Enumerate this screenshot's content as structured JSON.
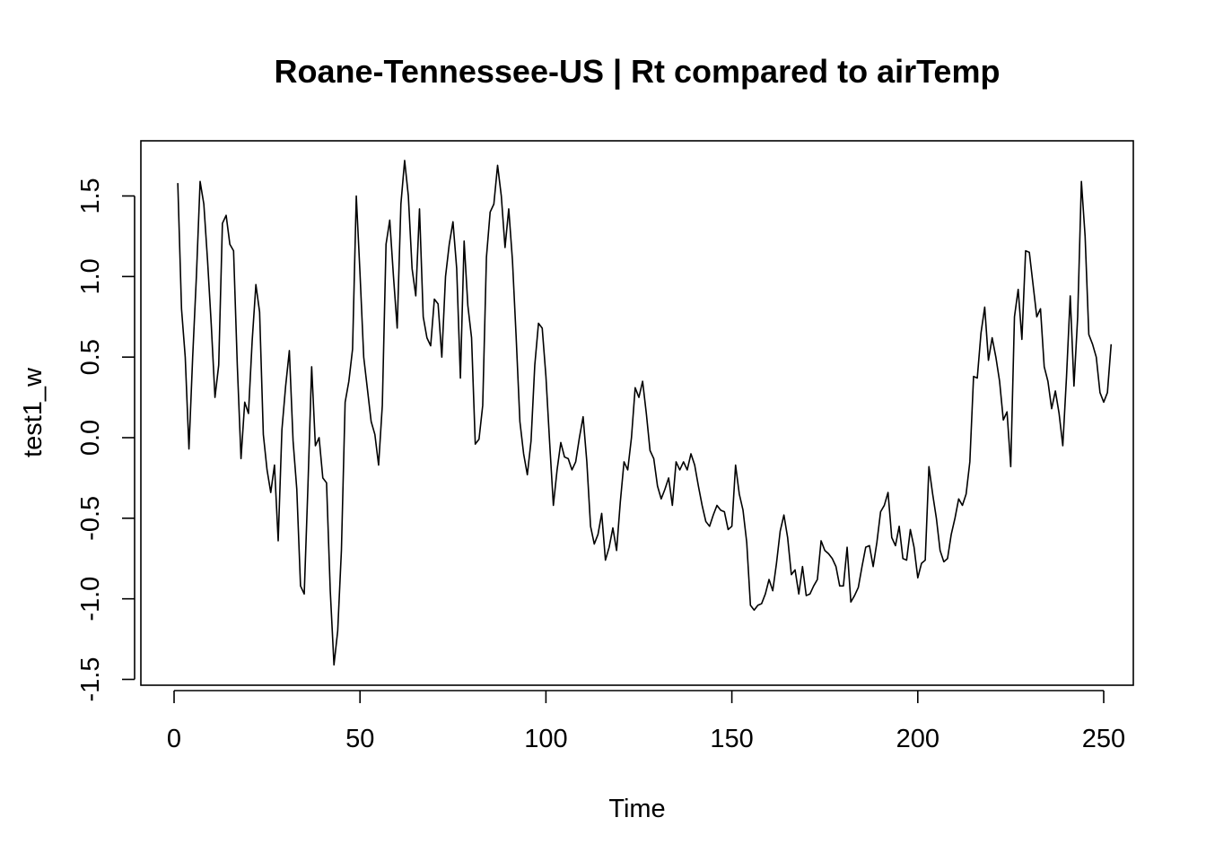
{
  "chart_data": {
    "type": "line",
    "title": "Roane-Tennessee-US | Rt compared to airTemp",
    "xlabel": "Time",
    "ylabel": "test1_w",
    "xlim": [
      1,
      248
    ],
    "ylim": [
      -1.5,
      1.75
    ],
    "x_ticks": [
      0,
      50,
      100,
      150,
      200,
      250
    ],
    "x_tick_labels": [
      "0",
      "50",
      "100",
      "150",
      "200",
      "250"
    ],
    "y_ticks": [
      -1.5,
      -1.0,
      -0.5,
      0.0,
      0.5,
      1.0,
      1.5
    ],
    "y_tick_labels": [
      "-1.5",
      "-1.0",
      "-0.5",
      "0.0",
      "0.5",
      "1.0",
      "1.5"
    ],
    "grid": false,
    "series": [
      {
        "x_start": 1,
        "x_step": 1,
        "color": "#000000",
        "values": [
          1.58,
          0.8,
          0.5,
          -0.07,
          0.5,
          1.0,
          1.59,
          1.45,
          1.1,
          0.7,
          0.25,
          0.45,
          1.33,
          1.38,
          1.2,
          1.16,
          0.45,
          -0.13,
          0.22,
          0.15,
          0.6,
          0.95,
          0.78,
          0.02,
          -0.2,
          -0.34,
          -0.17,
          -0.64,
          0.05,
          0.32,
          0.54,
          -0.02,
          -0.32,
          -0.92,
          -0.97,
          -0.3,
          0.44,
          -0.05,
          0.0,
          -0.25,
          -0.28,
          -0.95,
          -1.41,
          -1.2,
          -0.7,
          0.22,
          0.35,
          0.55,
          1.5,
          1.02,
          0.5,
          0.3,
          0.1,
          0.02,
          -0.17,
          0.2,
          1.2,
          1.35,
          1.0,
          0.68,
          1.45,
          1.72,
          1.5,
          1.05,
          0.88,
          1.42,
          0.75,
          0.62,
          0.57,
          0.86,
          0.83,
          0.5,
          1.0,
          1.2,
          1.34,
          1.05,
          0.37,
          1.22,
          0.82,
          0.62,
          -0.04,
          -0.01,
          0.2,
          1.12,
          1.4,
          1.45,
          1.69,
          1.5,
          1.18,
          1.42,
          1.1,
          0.62,
          0.1,
          -0.1,
          -0.23,
          -0.02,
          0.45,
          0.71,
          0.68,
          0.38,
          -0.03,
          -0.42,
          -0.2,
          -0.03,
          -0.12,
          -0.13,
          -0.2,
          -0.15,
          0.0,
          0.13,
          -0.15,
          -0.55,
          -0.66,
          -0.6,
          -0.47,
          -0.76,
          -0.68,
          -0.56,
          -0.7,
          -0.4,
          -0.15,
          -0.2,
          0.0,
          0.31,
          0.25,
          0.35,
          0.15,
          -0.08,
          -0.13,
          -0.3,
          -0.38,
          -0.32,
          -0.25,
          -0.42,
          -0.15,
          -0.2,
          -0.15,
          -0.2,
          -0.1,
          -0.17,
          -0.3,
          -0.42,
          -0.52,
          -0.55,
          -0.48,
          -0.42,
          -0.45,
          -0.46,
          -0.57,
          -0.55,
          -0.17,
          -0.35,
          -0.45,
          -0.65,
          -1.04,
          -1.07,
          -1.04,
          -1.03,
          -0.97,
          -0.88,
          -0.95,
          -0.78,
          -0.58,
          -0.48,
          -0.62,
          -0.85,
          -0.82,
          -0.97,
          -0.8,
          -0.98,
          -0.97,
          -0.92,
          -0.88,
          -0.64,
          -0.7,
          -0.72,
          -0.75,
          -0.8,
          -0.92,
          -0.92,
          -0.68,
          -1.02,
          -0.98,
          -0.93,
          -0.8,
          -0.68,
          -0.67,
          -0.8,
          -0.65,
          -0.46,
          -0.42,
          -0.34,
          -0.62,
          -0.67,
          -0.55,
          -0.75,
          -0.76,
          -0.57,
          -0.68,
          -0.87,
          -0.78,
          -0.76,
          -0.18,
          -0.35,
          -0.5,
          -0.7,
          -0.77,
          -0.75,
          -0.6,
          -0.5,
          -0.38,
          -0.42,
          -0.35,
          -0.15,
          0.38,
          0.37,
          0.65,
          0.81,
          0.48,
          0.62,
          0.5,
          0.35,
          0.11,
          0.16,
          -0.18,
          0.75,
          0.92,
          0.61,
          1.16,
          1.15,
          0.95,
          0.75,
          0.8,
          0.44,
          0.35,
          0.18,
          0.29,
          0.15,
          -0.05,
          0.38,
          0.88,
          0.32,
          0.75,
          1.59,
          1.25,
          0.64,
          0.58,
          0.5,
          0.28,
          0.22,
          0.28,
          0.58
        ]
      }
    ]
  }
}
